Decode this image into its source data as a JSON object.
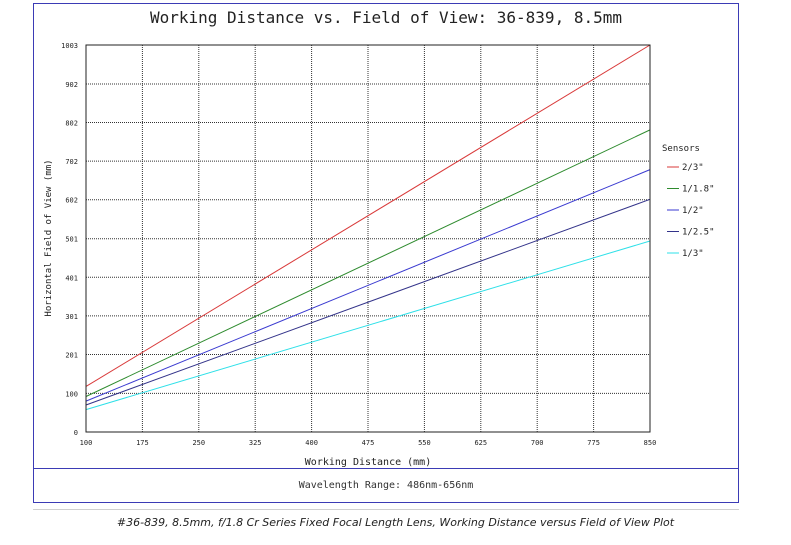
{
  "chart_data": {
    "type": "line",
    "title": "Working Distance vs. Field of View: 36-839, 8.5mm",
    "xlabel": "Working Distance (mm)",
    "ylabel": "Horizontal Field of View (mm)",
    "xlim": [
      100,
      850
    ],
    "ylim": [
      0,
      1003
    ],
    "xticks": [
      100,
      175,
      250,
      325,
      400,
      475,
      550,
      625,
      700,
      775,
      850
    ],
    "yticks": [
      0,
      100,
      201,
      301,
      401,
      501,
      602,
      702,
      802,
      902,
      1003
    ],
    "grid": true,
    "legend_title": "Sensors",
    "legend_position": "right",
    "series": [
      {
        "name": "2/3\"",
        "color": "#d93a3a",
        "x": [
          100,
          850
        ],
        "y": [
          118,
          1003
        ]
      },
      {
        "name": "1/1.8\"",
        "color": "#2e8b2e",
        "x": [
          100,
          850
        ],
        "y": [
          92,
          783
        ]
      },
      {
        "name": "1/2\"",
        "color": "#3a3ad0",
        "x": [
          100,
          850
        ],
        "y": [
          80,
          680
        ]
      },
      {
        "name": "1/2.5\"",
        "color": "#33338a",
        "x": [
          100,
          850
        ],
        "y": [
          70,
          603
        ]
      },
      {
        "name": "1/3\"",
        "color": "#2ee0e8",
        "x": [
          100,
          850
        ],
        "y": [
          58,
          495
        ]
      }
    ]
  },
  "footer": "Wavelength Range: 486nm-656nm",
  "caption": "#36-839, 8.5mm, f/1.8 Cr Series Fixed Focal Length Lens, Working Distance versus Field of View Plot"
}
